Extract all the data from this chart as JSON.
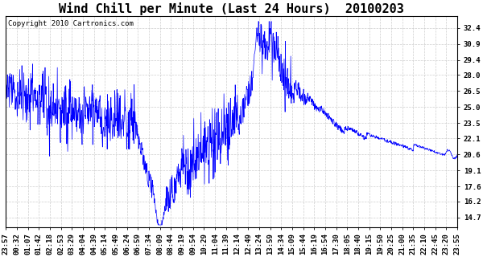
{
  "title": "Wind Chill per Minute (Last 24 Hours)  20100203",
  "copyright": "Copyright 2010 Cartronics.com",
  "line_color": "#0000ff",
  "bg_color": "#ffffff",
  "grid_color": "#c8c8c8",
  "yticks": [
    14.7,
    16.2,
    17.6,
    19.1,
    20.6,
    22.1,
    23.5,
    25.0,
    26.5,
    28.0,
    29.4,
    30.9,
    32.4
  ],
  "ylim": [
    13.8,
    33.5
  ],
  "xtick_labels": [
    "23:57",
    "00:32",
    "01:07",
    "01:42",
    "02:18",
    "02:53",
    "03:29",
    "04:04",
    "04:39",
    "05:14",
    "05:49",
    "06:24",
    "06:59",
    "07:34",
    "08:09",
    "08:44",
    "09:19",
    "09:54",
    "10:29",
    "11:04",
    "11:39",
    "12:14",
    "12:49",
    "13:24",
    "13:59",
    "14:34",
    "15:09",
    "15:44",
    "16:19",
    "16:54",
    "17:30",
    "18:05",
    "18:40",
    "19:15",
    "19:50",
    "20:25",
    "21:00",
    "21:35",
    "22:10",
    "22:45",
    "23:20",
    "23:55"
  ],
  "title_fontsize": 11,
  "tick_fontsize": 6.5,
  "copyright_fontsize": 6.5
}
